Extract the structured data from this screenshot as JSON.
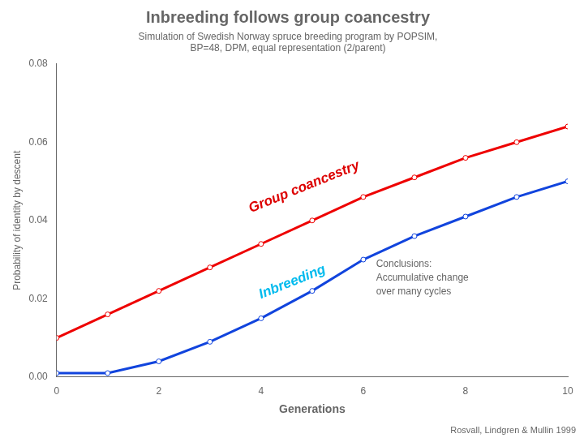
{
  "chart_data": {
    "type": "line",
    "title": "Inbreeding follows group coancestry",
    "subtitle": [
      "Simulation of Swedish Norway spruce breeding program by POPSIM,",
      "BP=48, DPM, equal representation (2/parent)"
    ],
    "xlabel": "Generations",
    "ylabel": "Probability of identity by descent",
    "x": [
      0,
      1,
      2,
      3,
      4,
      5,
      6,
      7,
      8,
      9,
      10
    ],
    "series": [
      {
        "color": "#ee0000",
        "marker": "circle",
        "values": [
          0.01,
          0.016,
          0.022,
          0.028,
          0.034,
          0.04,
          0.046,
          0.051,
          0.056,
          0.06,
          0.064
        ]
      },
      {
        "color": "#1144dd",
        "marker": "circle",
        "values": [
          0.001,
          0.001,
          0.004,
          0.009,
          0.015,
          0.022,
          0.03,
          0.036,
          0.041,
          0.046,
          0.05
        ]
      }
    ],
    "xlim": [
      0,
      10
    ],
    "ylim": [
      0,
      0.08
    ],
    "xticks": [
      0,
      2,
      4,
      6,
      8,
      10
    ],
    "yticks": [
      {
        "value": 0,
        "label": "0.00"
      },
      0.02,
      0.04,
      0.06,
      0.08
    ],
    "grid": false,
    "annotations": [
      {
        "text": "Group coancestry",
        "x": 3.8,
        "y": 0.042,
        "color": "#dd0000"
      },
      {
        "text": "Inbreeding",
        "x": 4.0,
        "y": 0.02,
        "color": "#00bbee"
      },
      {
        "text": "Conclusions:\nAccumulative change\nover many cycles",
        "x": 6.25,
        "y": 0.03
      }
    ],
    "caption": "Rosvall, Lindgren & Mullin 1999"
  }
}
